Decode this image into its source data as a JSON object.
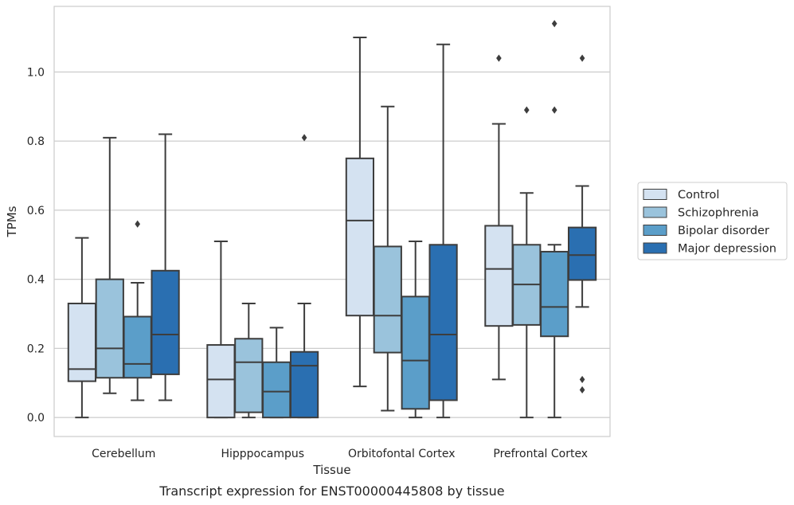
{
  "caption": "Transcript expression for ENST00000445808 by tissue",
  "chart_data": {
    "type": "box",
    "title": "",
    "xlabel": "Tissue",
    "ylabel": "TPMs",
    "ylim": [
      -0.055,
      1.19
    ],
    "yticks": [
      "0.0",
      "0.2",
      "0.4",
      "0.6",
      "0.8",
      "1.0"
    ],
    "grid": true,
    "legend_position": "right",
    "categories": [
      "Cerebellum",
      "Hipppocampus",
      "Orbitofontal Cortex",
      "Prefrontal Cortex"
    ],
    "series": [
      {
        "name": "Control",
        "color": "#d4e2f1",
        "boxes": [
          {
            "whisker_low": 0.0,
            "q1": 0.105,
            "median": 0.14,
            "q3": 0.33,
            "whisker_high": 0.52,
            "outliers": []
          },
          {
            "whisker_low": 0.0,
            "q1": 0.0,
            "median": 0.11,
            "q3": 0.21,
            "whisker_high": 0.51,
            "outliers": []
          },
          {
            "whisker_low": 0.09,
            "q1": 0.295,
            "median": 0.57,
            "q3": 0.75,
            "whisker_high": 1.1,
            "outliers": []
          },
          {
            "whisker_low": 0.11,
            "q1": 0.265,
            "median": 0.43,
            "q3": 0.555,
            "whisker_high": 0.85,
            "outliers": [
              1.04
            ]
          }
        ]
      },
      {
        "name": "Schizophrenia",
        "color": "#9ac3dc",
        "boxes": [
          {
            "whisker_low": 0.07,
            "q1": 0.115,
            "median": 0.2,
            "q3": 0.4,
            "whisker_high": 0.81,
            "outliers": []
          },
          {
            "whisker_low": 0.0,
            "q1": 0.015,
            "median": 0.16,
            "q3": 0.228,
            "whisker_high": 0.33,
            "outliers": []
          },
          {
            "whisker_low": 0.02,
            "q1": 0.188,
            "median": 0.295,
            "q3": 0.495,
            "whisker_high": 0.9,
            "outliers": []
          },
          {
            "whisker_low": 0.0,
            "q1": 0.268,
            "median": 0.385,
            "q3": 0.5,
            "whisker_high": 0.65,
            "outliers": [
              0.89
            ]
          }
        ]
      },
      {
        "name": "Bipolar disorder",
        "color": "#5b9ec9",
        "boxes": [
          {
            "whisker_low": 0.05,
            "q1": 0.115,
            "median": 0.155,
            "q3": 0.292,
            "whisker_high": 0.39,
            "outliers": [
              0.56
            ]
          },
          {
            "whisker_low": 0.0,
            "q1": 0.0,
            "median": 0.075,
            "q3": 0.16,
            "whisker_high": 0.26,
            "outliers": []
          },
          {
            "whisker_low": 0.0,
            "q1": 0.025,
            "median": 0.165,
            "q3": 0.35,
            "whisker_high": 0.51,
            "outliers": []
          },
          {
            "whisker_low": 0.0,
            "q1": 0.235,
            "median": 0.32,
            "q3": 0.48,
            "whisker_high": 0.5,
            "outliers": [
              0.89,
              1.14
            ]
          }
        ]
      },
      {
        "name": "Major depression",
        "color": "#2a6fb1",
        "boxes": [
          {
            "whisker_low": 0.05,
            "q1": 0.125,
            "median": 0.24,
            "q3": 0.425,
            "whisker_high": 0.82,
            "outliers": []
          },
          {
            "whisker_low": 0.0,
            "q1": 0.0,
            "median": 0.15,
            "q3": 0.19,
            "whisker_high": 0.33,
            "outliers": [
              0.81
            ]
          },
          {
            "whisker_low": 0.0,
            "q1": 0.05,
            "median": 0.24,
            "q3": 0.5,
            "whisker_high": 1.08,
            "outliers": []
          },
          {
            "whisker_low": 0.32,
            "q1": 0.398,
            "median": 0.47,
            "q3": 0.55,
            "whisker_high": 0.67,
            "outliers": [
              0.11,
              0.08,
              1.04
            ]
          }
        ]
      }
    ]
  }
}
